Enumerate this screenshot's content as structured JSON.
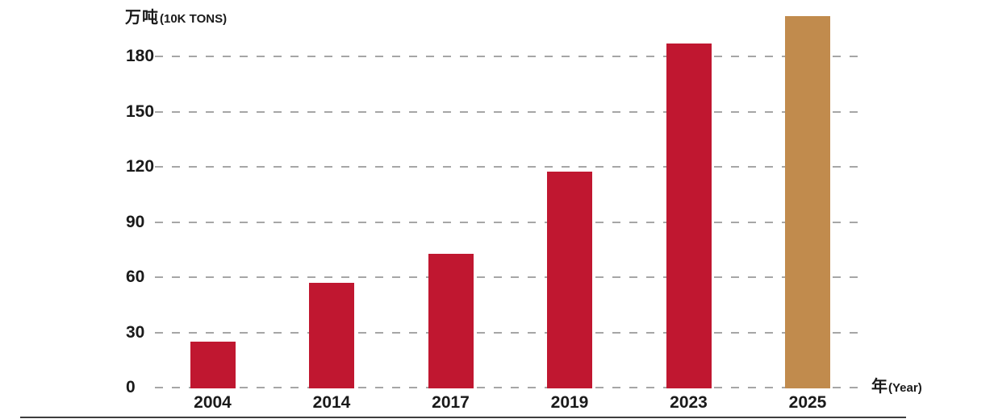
{
  "colors": {
    "background": "#FFFFFF",
    "bar_red": "#C01730",
    "bar_gold": "#C18B4D",
    "gridline": "#A6A6A6",
    "text": "#1A1A1A",
    "baseline": "#3D3D3D"
  },
  "chart_data": {
    "type": "bar",
    "title": "",
    "y_axis_title_cn": "万吨",
    "y_axis_title_en": "(10K TONS)",
    "x_axis_title_cn": "年",
    "x_axis_title_en": "(Year)",
    "ylabel": "万吨 (10K TONS)",
    "xlabel": "年 (Year)",
    "categories": [
      "2004",
      "2014",
      "2017",
      "2019",
      "2023",
      "2025"
    ],
    "values": [
      25,
      57,
      72.5,
      117.5,
      187,
      202
    ],
    "bar_colors": [
      "#C01730",
      "#C01730",
      "#C01730",
      "#C01730",
      "#C01730",
      "#C18B4D"
    ],
    "yticks": [
      0,
      30,
      60,
      90,
      120,
      150,
      180
    ],
    "ylim": [
      0,
      210
    ],
    "grid": "horizontal-dashed",
    "legend_position": "none",
    "highlighted_category": "2025"
  }
}
